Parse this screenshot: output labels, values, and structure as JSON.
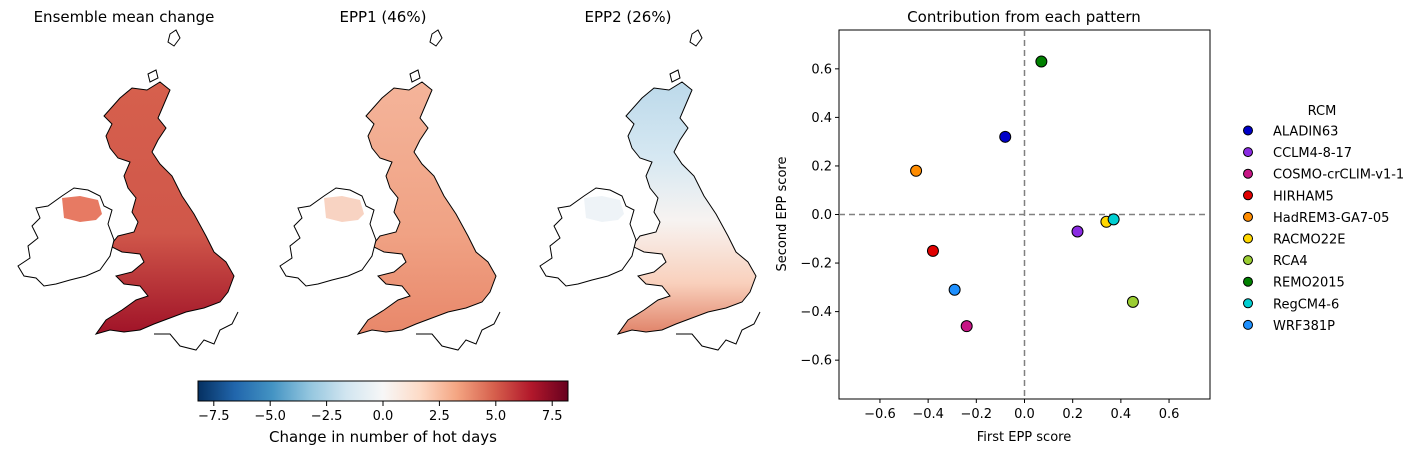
{
  "chart_data": [
    {
      "type": "heatmap",
      "title": "Ensemble mean change",
      "description_level": "uniformly strong increase, strongest in the south"
    },
    {
      "type": "heatmap",
      "title": "EPP1 (46%)",
      "description_level": "moderate increase everywhere"
    },
    {
      "type": "heatmap",
      "title": "EPP2 (26%)",
      "description_level": "decrease in the north, increase in the south"
    },
    {
      "type": "colorbar",
      "label": "Change in number of hot days",
      "range": [
        -8.2,
        8.2
      ],
      "ticks": [
        -7.5,
        -5.0,
        -2.5,
        0.0,
        2.5,
        5.0,
        7.5
      ],
      "tick_labels": [
        "−7.5",
        "−5.0",
        "−2.5",
        "0.0",
        "2.5",
        "5.0",
        "7.5"
      ],
      "colormap": "RdBu_r"
    },
    {
      "type": "scatter",
      "title": "Contribution from each pattern",
      "xlabel": "First EPP score",
      "ylabel": "Second EPP score",
      "xlim": [
        -0.77,
        0.77
      ],
      "ylim": [
        -0.76,
        0.76
      ],
      "xticks": [
        -0.6,
        -0.4,
        -0.2,
        0.0,
        0.2,
        0.4,
        0.6
      ],
      "yticks": [
        -0.6,
        -0.4,
        -0.2,
        0.0,
        0.2,
        0.4,
        0.6
      ],
      "xtick_labels": [
        "−0.6",
        "−0.4",
        "−0.2",
        "0.0",
        "0.2",
        "0.4",
        "0.6"
      ],
      "ytick_labels": [
        "−0.6",
        "−0.4",
        "−0.2",
        "0.0",
        "0.2",
        "0.4",
        "0.6"
      ],
      "reference_lines": {
        "x": 0,
        "y": 0,
        "style": "dashed",
        "color": "#808080"
      },
      "legend_title": "RCM",
      "legend_position": "right",
      "points": [
        {
          "name": "ALADIN63",
          "x": -0.08,
          "y": 0.32,
          "color": "#0000c8"
        },
        {
          "name": "CCLM4-8-17",
          "x": 0.22,
          "y": -0.07,
          "color": "#8a2be2"
        },
        {
          "name": "COSMO-crCLIM-v1-1",
          "x": -0.24,
          "y": -0.46,
          "color": "#c71585"
        },
        {
          "name": "HIRHAM5",
          "x": -0.38,
          "y": -0.15,
          "color": "#e00000"
        },
        {
          "name": "HadREM3-GA7-05",
          "x": -0.45,
          "y": 0.18,
          "color": "#ff8c00"
        },
        {
          "name": "RACMO22E",
          "x": 0.34,
          "y": -0.03,
          "color": "#ffd700"
        },
        {
          "name": "RCA4",
          "x": 0.45,
          "y": -0.36,
          "color": "#9acd32"
        },
        {
          "name": "REMO2015",
          "x": 0.07,
          "y": 0.63,
          "color": "#008000"
        },
        {
          "name": "RegCM4-6",
          "x": 0.37,
          "y": -0.02,
          "color": "#00ced1"
        },
        {
          "name": "WRF381P",
          "x": -0.29,
          "y": -0.31,
          "color": "#1e90ff"
        }
      ]
    }
  ]
}
